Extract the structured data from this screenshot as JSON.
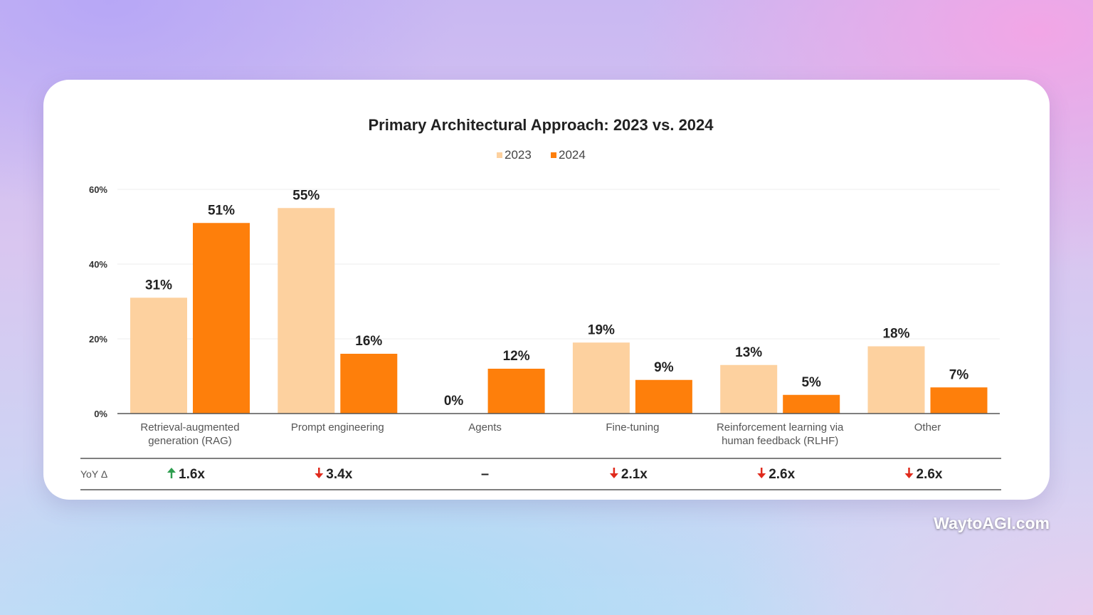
{
  "colors": {
    "series_2023": "#fdd19f",
    "series_2024": "#fe7f0b",
    "text": "#222222",
    "up_arrow": "#2e9e4f",
    "down_arrow": "#e02a1c",
    "axis": "#555555",
    "grid": "#eeeeee"
  },
  "chart_data": {
    "type": "bar",
    "title": "Primary Architectural Approach: 2023 vs. 2024",
    "categories": [
      [
        "Retrieval-augmented",
        "generation (RAG)"
      ],
      [
        "Prompt engineering"
      ],
      [
        "Agents"
      ],
      [
        "Fine-tuning"
      ],
      [
        "Reinforcement learning via",
        "human feedback (RLHF)"
      ],
      [
        "Other"
      ]
    ],
    "series": [
      {
        "name": "2023",
        "values": [
          31,
          55,
          0,
          19,
          13,
          18
        ],
        "labels": [
          "31%",
          "55%",
          "0%",
          "19%",
          "13%",
          "18%"
        ]
      },
      {
        "name": "2024",
        "values": [
          51,
          16,
          12,
          9,
          5,
          7
        ],
        "labels": [
          "51%",
          "16%",
          "12%",
          "9%",
          "5%",
          "7%"
        ]
      }
    ],
    "yticks": [
      0,
      20,
      40,
      60
    ],
    "ytick_labels": [
      "0%",
      "20%",
      "40%",
      "60%"
    ],
    "ylim": [
      0,
      60
    ],
    "legend": "top-center",
    "yoy": {
      "label": "YoY Δ",
      "values": [
        {
          "dir": "up",
          "text": "1.6x"
        },
        {
          "dir": "down",
          "text": "3.4x"
        },
        {
          "dir": "none",
          "text": "–"
        },
        {
          "dir": "down",
          "text": "2.1x"
        },
        {
          "dir": "down",
          "text": "2.6x"
        },
        {
          "dir": "down",
          "text": "2.6x"
        }
      ]
    }
  },
  "watermark": "WaytoAGI.com"
}
